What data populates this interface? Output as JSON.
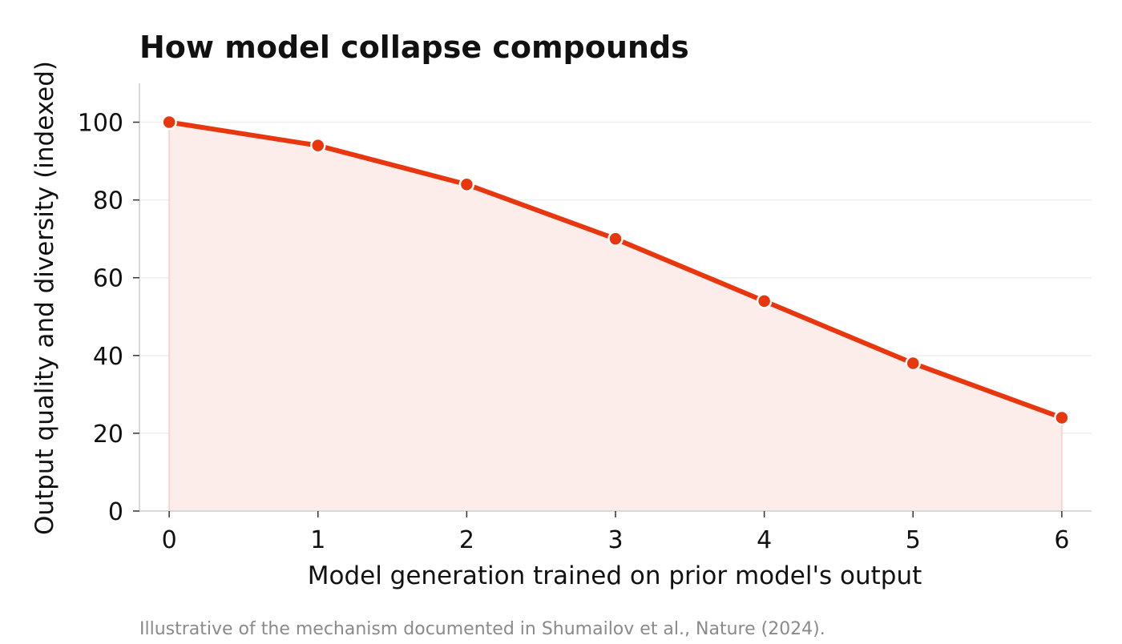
{
  "colors": {
    "line": "#e8360e",
    "area_fill": "#fcedea",
    "grid": "#efefef",
    "axis": "#d9d9d9",
    "marker_edge": "#ffffff",
    "caption": "#8a8a8a"
  },
  "chart_data": {
    "type": "line",
    "title": "How model collapse compounds",
    "xlabel": "Model generation trained on prior model's output",
    "ylabel": "Output quality and diversity (indexed)",
    "x": [
      0,
      1,
      2,
      3,
      4,
      5,
      6
    ],
    "series": [
      {
        "values": [
          100,
          94,
          84,
          70,
          54,
          38,
          24
        ],
        "fill_below": true,
        "markers": true
      }
    ],
    "xlim": [
      -0.2,
      6.2
    ],
    "ylim": [
      0,
      110
    ],
    "xticks": [
      0,
      1,
      2,
      3,
      4,
      5,
      6
    ],
    "yticks": [
      0,
      20,
      40,
      60,
      80,
      100
    ],
    "grid": "horizontal",
    "legend": "none",
    "caption": "Illustrative of the mechanism documented in Shumailov et al., Nature (2024)."
  }
}
